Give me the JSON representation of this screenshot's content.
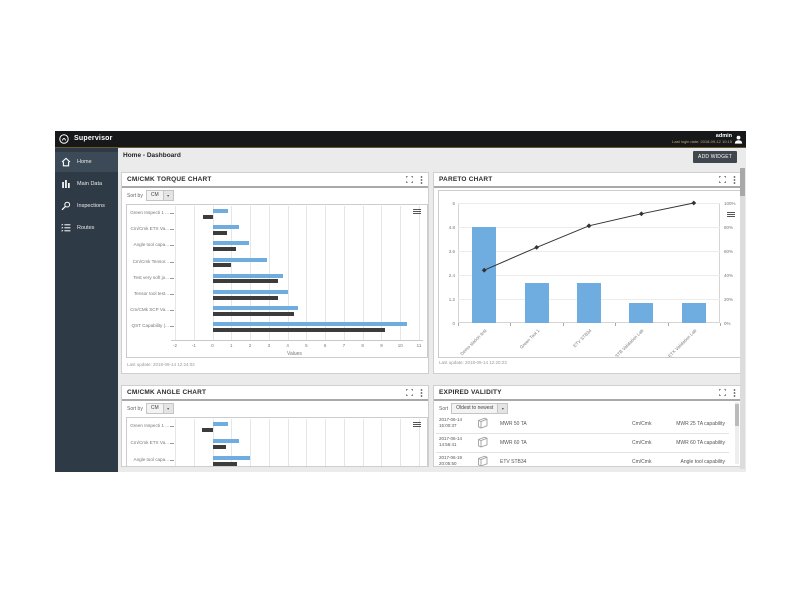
{
  "colors": {
    "accent_blue": "#6fade0",
    "bar_dark": "#3c3c3c",
    "line_dark": "#333333",
    "topbar_bg": "#17181a",
    "topbar_accent": "#6b5a2c",
    "sidebar_bg": "#2e3b46",
    "sidebar_selected": "#3c4a57",
    "content_bg": "#ebebeb",
    "panel_border": "#cfcfcf",
    "divider": "#a9a9a9",
    "grid": "#e6e6e6"
  },
  "topbar": {
    "brand": "Supervisor",
    "user": "admin",
    "last_login": "Last login date: 2018-09-12 10:15"
  },
  "sidebar": {
    "items": [
      {
        "label": "Home",
        "selected": true
      },
      {
        "label": "Main Data",
        "selected": false
      },
      {
        "label": "Inspections",
        "selected": false
      },
      {
        "label": "Routes",
        "selected": false
      }
    ]
  },
  "header": {
    "breadcrumb": "Home - Dashboard",
    "add_widget_label": "ADD WIDGET"
  },
  "panels": {
    "torque": {
      "title": "CM/CMK TORQUE CHART",
      "sort_label": "Sort by",
      "sort_value": "CM",
      "last_update": "Last update: 2018-09-14 12:24:02"
    },
    "pareto": {
      "title": "PARETO CHART",
      "last_update": "Last update: 2018-09-14 12:20:23"
    },
    "angle": {
      "title": "CM/CMK ANGLE CHART",
      "sort_label": "Sort by",
      "sort_value": "CM"
    },
    "expired": {
      "title": "EXPIRED VALIDITY",
      "sort_label": "Sort",
      "sort_value": "Oldest to newest",
      "rows": [
        {
          "date": "2017-06-14",
          "time": "15:00:37",
          "name": "MWR 50 TA",
          "type": "Cm/Cmk",
          "capability": "MWR 25 TA capability"
        },
        {
          "date": "2017-06-14",
          "time": "14:56:41",
          "name": "MWR 60 TA",
          "type": "Cm/Cmk",
          "capability": "MWR 60 TA capability"
        },
        {
          "date": "2017-06-19",
          "time": "20:05:50",
          "name": "ETV STB34",
          "type": "Cm/Cmk",
          "capability": "Angle tool capability"
        }
      ]
    }
  },
  "chart_data": [
    {
      "id": "torque",
      "type": "bar",
      "orientation": "horizontal",
      "title": "CM/CMK TORQUE CHART",
      "categories": [
        "Green Inspecti 1 ...",
        "Cm/Cmk ETX Va...",
        "Angle tool capa...",
        "Cm/Cmk Tensor...",
        "Test very soft jo...",
        "Tensor tool test...",
        "Cm/CMk SCP Va...",
        "QST Capability (..."
      ],
      "series": [
        {
          "name": "Cm",
          "color": "#6fade0",
          "values": [
            0.85,
            1.4,
            1.95,
            2.9,
            3.75,
            4.0,
            4.55,
            10.35
          ]
        },
        {
          "name": "Cmk",
          "color": "#3c3c3c",
          "values": [
            -0.5,
            0.75,
            1.25,
            1.0,
            3.5,
            3.5,
            4.35,
            9.2
          ]
        }
      ],
      "xlabel": "Values",
      "xlim": [
        -2,
        11
      ],
      "xticks": [
        -2,
        -1,
        0,
        1,
        2,
        3,
        4,
        5,
        6,
        7,
        8,
        9,
        10,
        11
      ],
      "grid": true,
      "legend": false
    },
    {
      "id": "pareto",
      "type": "pareto",
      "title": "PARETO CHART",
      "categories": [
        "Demo station test",
        "Green Tool 1",
        "ETV STB34",
        "Tensor STB Validation Lab",
        "ETX Validation Lab"
      ],
      "bars": {
        "name": "Count",
        "color": "#6fade0",
        "values": [
          4.8,
          2,
          2,
          1,
          1
        ]
      },
      "line": {
        "name": "Cumulative %",
        "color": "#333333",
        "values_pct": [
          44,
          63,
          81,
          91,
          100
        ]
      },
      "ylim": [
        0,
        6
      ],
      "yticks": [
        0,
        1.2,
        2.4,
        3.6,
        4.8,
        6
      ],
      "y2lim": [
        0,
        100
      ],
      "y2ticks": [
        "0%",
        "20%",
        "40%",
        "60%",
        "80%",
        "100%"
      ],
      "grid": true,
      "legend": false
    },
    {
      "id": "angle",
      "type": "bar",
      "orientation": "horizontal",
      "title": "CM/CMK ANGLE CHART",
      "categories": [
        "Green Inspecti 1 ...",
        "Cm/Cmk ETX Va...",
        "Angle tool capa..."
      ],
      "series": [
        {
          "name": "Cm",
          "color": "#6fade0",
          "values": [
            0.85,
            1.4,
            2.0
          ]
        },
        {
          "name": "Cmk",
          "color": "#3c3c3c",
          "values": [
            -0.55,
            0.7,
            1.3
          ]
        }
      ],
      "xlabel": "",
      "xlim": [
        -2,
        11
      ],
      "xticks": [
        -2,
        -1,
        0,
        1,
        2,
        3,
        4,
        5,
        6,
        7,
        8,
        9,
        10,
        11
      ],
      "grid": true,
      "legend": false
    }
  ]
}
